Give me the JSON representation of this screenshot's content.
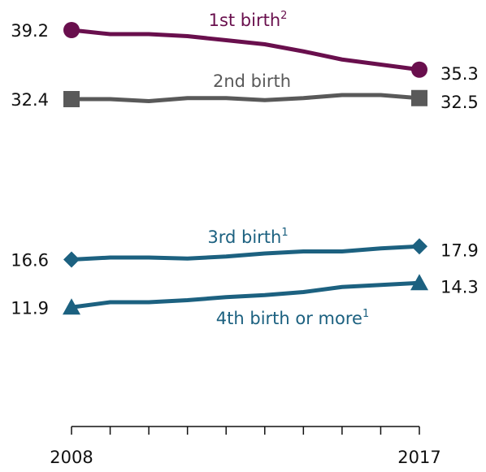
{
  "chart_data": {
    "type": "line",
    "x": [
      2008,
      2009,
      2010,
      2011,
      2012,
      2013,
      2014,
      2015,
      2016,
      2017
    ],
    "xlim": [
      2008,
      2017
    ],
    "xticks": [
      2008,
      2017
    ],
    "ylim": [
      0,
      42
    ],
    "series": [
      {
        "name": "1st birth",
        "superscript": "2",
        "color": "#690f4d",
        "marker": "circle",
        "values": [
          39.2,
          38.8,
          38.8,
          38.6,
          38.2,
          37.8,
          37.1,
          36.3,
          35.8,
          35.3
        ]
      },
      {
        "name": "2nd birth",
        "color": "#595959",
        "marker": "square",
        "values": [
          32.4,
          32.4,
          32.2,
          32.5,
          32.5,
          32.3,
          32.5,
          32.8,
          32.8,
          32.5
        ]
      },
      {
        "name": "3rd birth",
        "superscript": "1",
        "color": "#1c6180",
        "marker": "diamond",
        "values": [
          16.6,
          16.8,
          16.8,
          16.7,
          16.9,
          17.2,
          17.4,
          17.4,
          17.7,
          17.9
        ]
      },
      {
        "name": "4th birth or more",
        "superscript": "1",
        "color": "#1c6180",
        "marker": "triangle",
        "values": [
          11.9,
          12.4,
          12.4,
          12.6,
          12.9,
          13.1,
          13.4,
          13.9,
          14.1,
          14.3
        ]
      }
    ]
  }
}
